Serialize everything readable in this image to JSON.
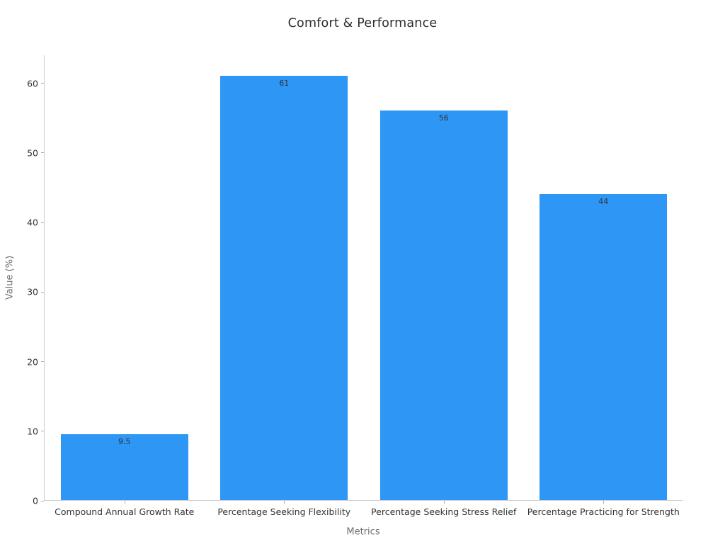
{
  "chart_data": {
    "type": "bar",
    "title": "Comfort & Performance",
    "xlabel": "Metrics",
    "ylabel": "Value (%)",
    "categories": [
      "Compound Annual Growth Rate",
      "Percentage Seeking Flexibility",
      "Percentage Seeking Stress Relief",
      "Percentage Practicing for Strength"
    ],
    "values": [
      9.5,
      61,
      56,
      44
    ],
    "value_labels": [
      "9.5",
      "61",
      "56",
      "44"
    ],
    "yticks": [
      0,
      10,
      20,
      30,
      40,
      50,
      60
    ],
    "ylim": [
      0,
      64.05
    ],
    "grid": false,
    "legend": null,
    "bar_width_fraction": 0.8,
    "colors": {
      "bar": "#2e96f5",
      "title_text": "#2d2d2d",
      "tick_label_text": "#333333",
      "bar_label_text": "#333333",
      "axis_label_text": "#6e6e6e",
      "spine": "#cfcfcf",
      "tick_mark": "#ababab",
      "background": "#ffffff"
    }
  }
}
